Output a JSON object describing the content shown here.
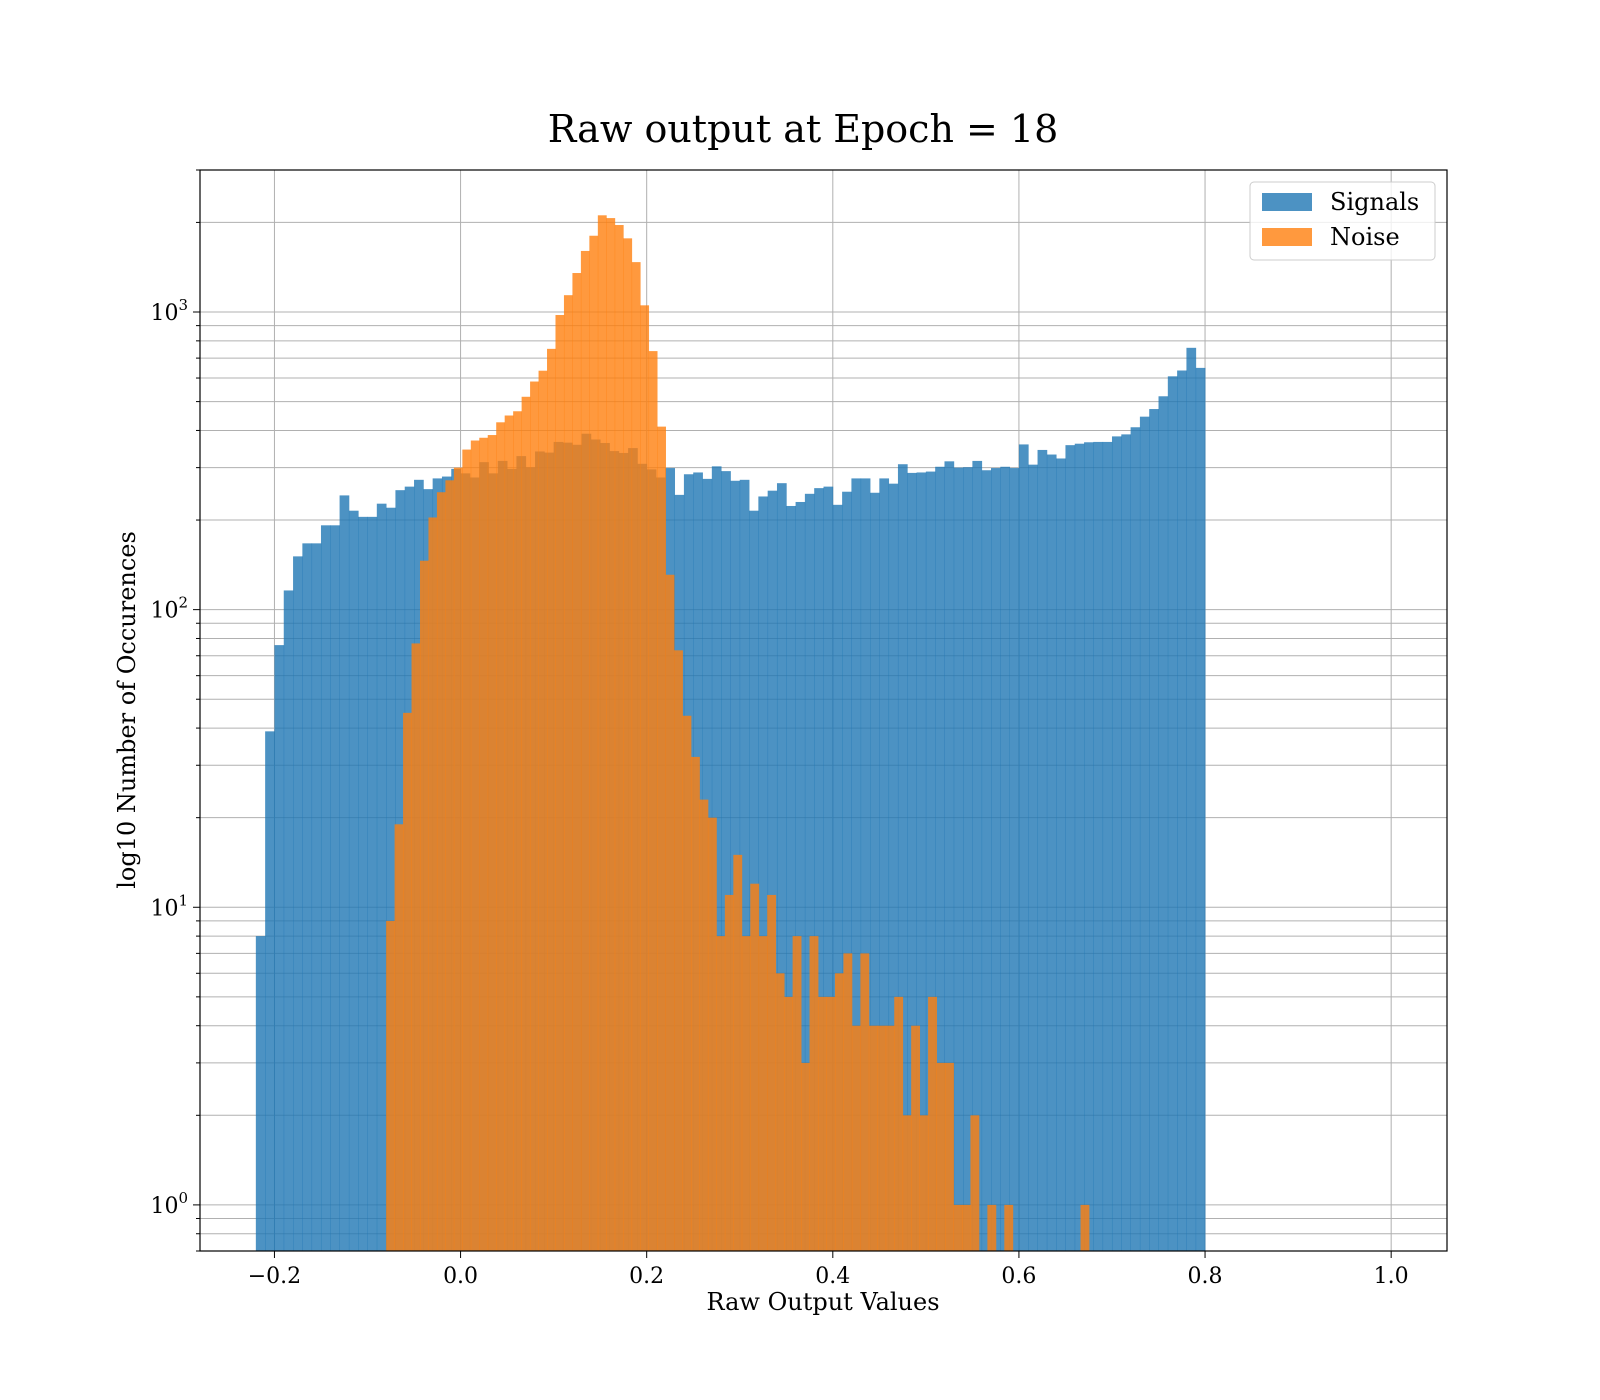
{
  "chart_data": {
    "type": "bar",
    "title": "Raw output at Epoch = 18",
    "xlabel": "Raw Output Values",
    "ylabel": "log10 Number of Occurences",
    "xlim": [
      -0.28,
      1.06
    ],
    "ylim": [
      0.7,
      3000
    ],
    "yscale": "log",
    "grid": "both-major-minor",
    "legend_position": "top-right",
    "x_ticks": [
      -0.2,
      0.0,
      0.2,
      0.4,
      0.6,
      0.8,
      1.0
    ],
    "x_tick_labels": [
      "−0.2",
      "0.0",
      "0.2",
      "0.4",
      "0.6",
      "0.8",
      "1.0"
    ],
    "y_ticks": [
      1,
      10,
      100,
      1000
    ],
    "y_tick_bases": [
      "10",
      "10",
      "10",
      "10"
    ],
    "y_tick_exps": [
      "0",
      "1",
      "2",
      "3"
    ],
    "series": [
      {
        "name": "Signals",
        "color": "#1f77b4",
        "alpha": 0.8,
        "bin_start": -0.22,
        "bin_width": 0.01,
        "values": [
          8,
          39,
          76,
          116,
          151,
          167,
          167,
          192,
          192,
          242,
          215,
          205,
          205,
          227,
          220,
          252,
          259,
          273,
          254,
          276,
          280,
          297,
          287,
          278,
          313,
          287,
          316,
          297,
          328,
          301,
          340,
          337,
          366,
          364,
          358,
          390,
          373,
          363,
          341,
          336,
          349,
          309,
          296,
          278,
          299,
          243,
          285,
          289,
          275,
          303,
          292,
          271,
          273,
          215,
          240,
          251,
          266,
          223,
          230,
          245,
          256,
          259,
          225,
          249,
          276,
          276,
          247,
          276,
          265,
          308,
          288,
          289,
          291,
          302,
          315,
          300,
          301,
          316,
          294,
          299,
          302,
          299,
          359,
          307,
          344,
          332,
          322,
          357,
          361,
          365,
          366,
          366,
          382,
          388,
          410,
          445,
          472,
          521,
          608,
          636,
          758,
          649
        ]
      },
      {
        "name": "Noise",
        "color": "#ff7f0e",
        "alpha": 0.8,
        "bin_start": -0.08,
        "bin_width": 0.0091,
        "values": [
          9,
          19,
          45,
          77,
          146,
          204,
          248,
          272,
          300,
          345,
          370,
          378,
          386,
          426,
          449,
          464,
          519,
          584,
          635,
          752,
          977,
          1139,
          1352,
          1604,
          1804,
          2113,
          2068,
          1960,
          1768,
          1471,
          1053,
          739,
          412,
          131,
          73,
          44,
          32,
          23,
          20,
          8,
          11,
          15,
          8,
          12,
          8,
          11,
          6,
          5,
          8,
          3,
          8,
          5,
          5,
          6,
          7,
          4,
          7,
          4,
          4,
          4,
          5,
          2,
          4,
          2,
          5,
          3,
          3,
          1,
          1,
          2,
          0,
          1,
          0,
          1,
          0,
          0,
          0,
          0,
          0,
          0,
          0,
          0,
          1
        ]
      }
    ]
  }
}
